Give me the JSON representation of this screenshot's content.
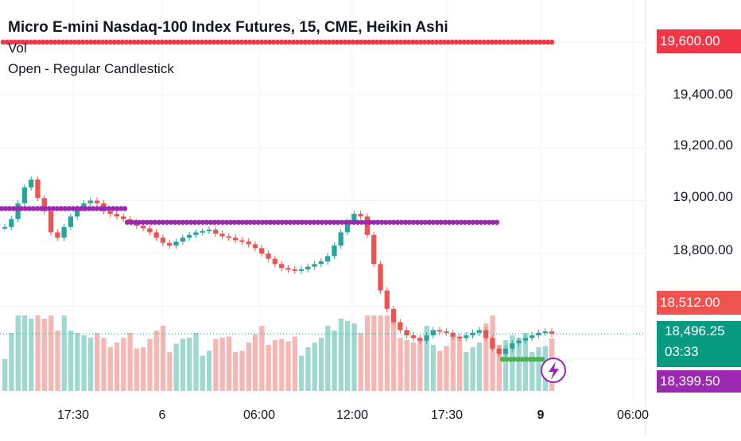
{
  "legend": {
    "title": "Micro E-mini Nasdaq-100 Index Futures, 15, CME, Heikin Ashi",
    "volume": "Vol",
    "indicator": "Open - Regular Candlestick"
  },
  "price_axis": {
    "labels": [
      "19,400.00",
      "19,200.00",
      "19,000.00",
      "18,800.00"
    ],
    "tags": {
      "resistance": "19,600.00",
      "previous": "18,512.00",
      "last_price": "18,496.25",
      "countdown": "03:33",
      "support": "18,399.50"
    }
  },
  "time_axis": {
    "labels": [
      "17:30",
      "6",
      "06:00",
      "12:00",
      "17:30",
      "9",
      "06:00"
    ]
  },
  "colors": {
    "up": "#26a69a",
    "down": "#ef5350",
    "open_line": "#9c27b0",
    "resistance_line": "#f23645",
    "support_line": "#4caf50",
    "up_volume": "#9fd7d1",
    "down_volume": "#f6b7b4"
  },
  "icons": {
    "lightning": "lightning-icon"
  },
  "chart_data": {
    "type": "candlestick",
    "title": "Micro E-mini Nasdaq-100 Index Futures, 15, CME, Heikin Ashi",
    "ylim": [
      18360,
      19700
    ],
    "resistance_level": 19600,
    "open_level_session1": 18970,
    "open_level_session2": 18918,
    "support_level": 18399.5,
    "last_price": 18496.25,
    "close_series": [
      18900,
      18930,
      18990,
      19050,
      19080,
      19010,
      18960,
      18880,
      18860,
      18900,
      18940,
      18970,
      18990,
      19000,
      18990,
      18960,
      18950,
      18940,
      18930,
      18920,
      18905,
      18895,
      18880,
      18860,
      18840,
      18830,
      18845,
      18860,
      18870,
      18880,
      18885,
      18890,
      18875,
      18865,
      18860,
      18850,
      18845,
      18835,
      18820,
      18800,
      18780,
      18760,
      18745,
      18740,
      18735,
      18740,
      18750,
      18760,
      18770,
      18790,
      18830,
      18880,
      18920,
      18950,
      18940,
      18870,
      18760,
      18660,
      18590,
      18540,
      18510,
      18490,
      18480,
      18470,
      18490,
      18510,
      18505,
      18500,
      18485,
      18480,
      18490,
      18500,
      18510,
      18480,
      18440,
      18420,
      18440,
      18460,
      18470,
      18480,
      18490,
      18500,
      18505,
      18496
    ]
  }
}
